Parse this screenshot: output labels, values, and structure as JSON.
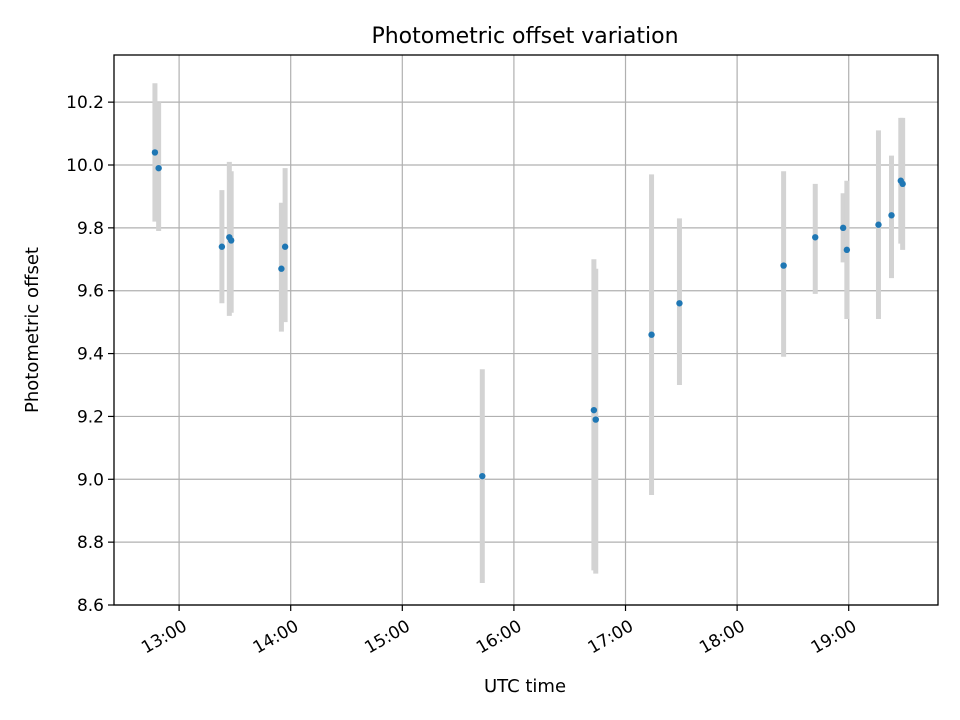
{
  "chart_data": {
    "type": "scatter",
    "title": "Photometric offset variation",
    "xlabel": "UTC time",
    "ylabel": "Photometric offset",
    "x_axis_kind": "time",
    "xlim": [
      "12:25",
      "19:48"
    ],
    "ylim": [
      8.6,
      10.35
    ],
    "grid": true,
    "x_ticks": [
      "13:00",
      "14:00",
      "15:00",
      "16:00",
      "17:00",
      "18:00",
      "19:00"
    ],
    "y_ticks": [
      8.6,
      8.8,
      9.0,
      9.2,
      9.4,
      9.6,
      9.8,
      10.0,
      10.2
    ],
    "colors": {
      "point": "#1f77b4",
      "errorbar": "#d3d3d3"
    },
    "points": [
      {
        "x": "12:47",
        "y": 10.04,
        "err_low": 9.82,
        "err_high": 10.26
      },
      {
        "x": "12:49",
        "y": 9.99,
        "err_low": 9.79,
        "err_high": 10.2
      },
      {
        "x": "13:23",
        "y": 9.74,
        "err_low": 9.56,
        "err_high": 9.92
      },
      {
        "x": "13:27",
        "y": 9.77,
        "err_low": 9.52,
        "err_high": 10.01
      },
      {
        "x": "13:28",
        "y": 9.76,
        "err_low": 9.53,
        "err_high": 9.98
      },
      {
        "x": "13:55",
        "y": 9.67,
        "err_low": 9.47,
        "err_high": 9.88
      },
      {
        "x": "13:57",
        "y": 9.74,
        "err_low": 9.5,
        "err_high": 9.99
      },
      {
        "x": "15:43",
        "y": 9.01,
        "err_low": 8.67,
        "err_high": 9.35
      },
      {
        "x": "16:43",
        "y": 9.22,
        "err_low": 8.71,
        "err_high": 9.7
      },
      {
        "x": "16:44",
        "y": 9.19,
        "err_low": 8.7,
        "err_high": 9.67
      },
      {
        "x": "17:14",
        "y": 9.46,
        "err_low": 8.95,
        "err_high": 9.97
      },
      {
        "x": "17:29",
        "y": 9.56,
        "err_low": 9.3,
        "err_high": 9.83
      },
      {
        "x": "18:25",
        "y": 9.68,
        "err_low": 9.39,
        "err_high": 9.98
      },
      {
        "x": "18:42",
        "y": 9.77,
        "err_low": 9.59,
        "err_high": 9.94
      },
      {
        "x": "18:57",
        "y": 9.8,
        "err_low": 9.69,
        "err_high": 9.91
      },
      {
        "x": "18:59",
        "y": 9.73,
        "err_low": 9.51,
        "err_high": 9.95
      },
      {
        "x": "19:16",
        "y": 9.81,
        "err_low": 9.51,
        "err_high": 10.11
      },
      {
        "x": "19:23",
        "y": 9.84,
        "err_low": 9.64,
        "err_high": 10.03
      },
      {
        "x": "19:28",
        "y": 9.95,
        "err_low": 9.75,
        "err_high": 10.15
      },
      {
        "x": "19:29",
        "y": 9.94,
        "err_low": 9.73,
        "err_high": 10.15
      }
    ]
  }
}
